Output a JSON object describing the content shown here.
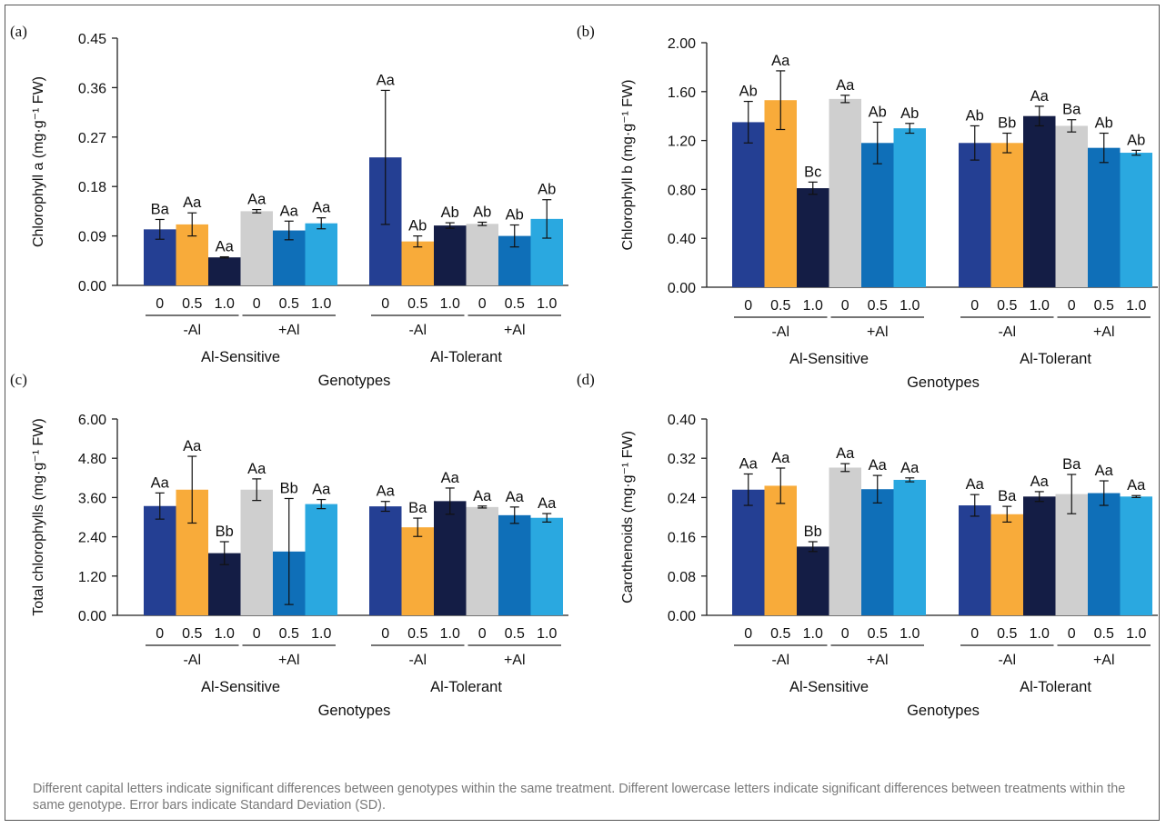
{
  "footnote": "Different capital letters indicate significant differences between genotypes within the same treatment. Different lowercase letters indicate significant differences between treatments within the same genotype. Error bars indicate Standard Deviation (SD).",
  "colors": {
    "-Al|0": "#243f93",
    "-Al|0.5": "#f8ab3a",
    "-Al|1.0": "#141d45",
    "+Al|0": "#cfcfcf",
    "+Al|0.5": "#0f6fb8",
    "+Al|1.0": "#2aa8e0"
  },
  "chart_data": [
    {
      "panel": "(a)",
      "type": "bar",
      "ylabel": "Chlorophyll a (mg·g⁻¹ FW)",
      "xlabel": "Genotypes",
      "ylim": [
        0,
        0.45
      ],
      "yticks": [
        "0.00",
        "0.09",
        "0.18",
        "0.27",
        "0.36",
        "0.45"
      ],
      "genotypes": [
        "Al-Sensitive",
        "Al-Tolerant"
      ],
      "treatments": [
        "-Al",
        "+Al"
      ],
      "levels": [
        "0",
        "0.5",
        "1.0"
      ],
      "series": [
        {
          "genotype": "Al-Sensitive",
          "treatment": "-Al",
          "level": "0",
          "value": 0.102,
          "sd": 0.018,
          "label": "Ba"
        },
        {
          "genotype": "Al-Sensitive",
          "treatment": "-Al",
          "level": "0.5",
          "value": 0.111,
          "sd": 0.021,
          "label": "Aa"
        },
        {
          "genotype": "Al-Sensitive",
          "treatment": "-Al",
          "level": "1.0",
          "value": 0.051,
          "sd": 0.001,
          "label": "Aa"
        },
        {
          "genotype": "Al-Sensitive",
          "treatment": "+Al",
          "level": "0",
          "value": 0.135,
          "sd": 0.003,
          "label": "Aa"
        },
        {
          "genotype": "Al-Sensitive",
          "treatment": "+Al",
          "level": "0.5",
          "value": 0.1,
          "sd": 0.017,
          "label": "Aa"
        },
        {
          "genotype": "Al-Sensitive",
          "treatment": "+Al",
          "level": "1.0",
          "value": 0.113,
          "sd": 0.01,
          "label": "Aa"
        },
        {
          "genotype": "Al-Tolerant",
          "treatment": "-Al",
          "level": "0",
          "value": 0.233,
          "sd": 0.122,
          "label": "Aa"
        },
        {
          "genotype": "Al-Tolerant",
          "treatment": "-Al",
          "level": "0.5",
          "value": 0.08,
          "sd": 0.01,
          "label": "Ab"
        },
        {
          "genotype": "Al-Tolerant",
          "treatment": "-Al",
          "level": "1.0",
          "value": 0.109,
          "sd": 0.005,
          "label": "Ab"
        },
        {
          "genotype": "Al-Tolerant",
          "treatment": "+Al",
          "level": "0",
          "value": 0.112,
          "sd": 0.003,
          "label": "Ab"
        },
        {
          "genotype": "Al-Tolerant",
          "treatment": "+Al",
          "level": "0.5",
          "value": 0.09,
          "sd": 0.02,
          "label": "Ab"
        },
        {
          "genotype": "Al-Tolerant",
          "treatment": "+Al",
          "level": "1.0",
          "value": 0.121,
          "sd": 0.035,
          "label": "Ab"
        }
      ]
    },
    {
      "panel": "(b)",
      "type": "bar",
      "ylabel": "Chlorophyll b (mg·g⁻¹ FW)",
      "xlabel": "Genotypes",
      "ylim": [
        0,
        2.0
      ],
      "yticks": [
        "0.00",
        "0.40",
        "0.80",
        "1.20",
        "1.60",
        "2.00"
      ],
      "genotypes": [
        "Al-Sensitive",
        "Al-Tolerant"
      ],
      "treatments": [
        "-Al",
        "+Al"
      ],
      "levels": [
        "0",
        "0.5",
        "1.0"
      ],
      "series": [
        {
          "genotype": "Al-Sensitive",
          "treatment": "-Al",
          "level": "0",
          "value": 1.35,
          "sd": 0.17,
          "label": "Ab"
        },
        {
          "genotype": "Al-Sensitive",
          "treatment": "-Al",
          "level": "0.5",
          "value": 1.53,
          "sd": 0.24,
          "label": "Aa"
        },
        {
          "genotype": "Al-Sensitive",
          "treatment": "-Al",
          "level": "1.0",
          "value": 0.81,
          "sd": 0.05,
          "label": "Bc"
        },
        {
          "genotype": "Al-Sensitive",
          "treatment": "+Al",
          "level": "0",
          "value": 1.54,
          "sd": 0.03,
          "label": "Aa"
        },
        {
          "genotype": "Al-Sensitive",
          "treatment": "+Al",
          "level": "0.5",
          "value": 1.18,
          "sd": 0.17,
          "label": "Ab"
        },
        {
          "genotype": "Al-Sensitive",
          "treatment": "+Al",
          "level": "1.0",
          "value": 1.3,
          "sd": 0.04,
          "label": "Ab"
        },
        {
          "genotype": "Al-Tolerant",
          "treatment": "-Al",
          "level": "0",
          "value": 1.18,
          "sd": 0.14,
          "label": "Ab"
        },
        {
          "genotype": "Al-Tolerant",
          "treatment": "-Al",
          "level": "0.5",
          "value": 1.18,
          "sd": 0.08,
          "label": "Bb"
        },
        {
          "genotype": "Al-Tolerant",
          "treatment": "-Al",
          "level": "1.0",
          "value": 1.4,
          "sd": 0.08,
          "label": "Aa"
        },
        {
          "genotype": "Al-Tolerant",
          "treatment": "+Al",
          "level": "0",
          "value": 1.32,
          "sd": 0.05,
          "label": "Ba"
        },
        {
          "genotype": "Al-Tolerant",
          "treatment": "+Al",
          "level": "0.5",
          "value": 1.14,
          "sd": 0.12,
          "label": "Ab"
        },
        {
          "genotype": "Al-Tolerant",
          "treatment": "+Al",
          "level": "1.0",
          "value": 1.1,
          "sd": 0.02,
          "label": "Ab"
        }
      ]
    },
    {
      "panel": "(c)",
      "type": "bar",
      "ylabel": "Total chlorophylls (mg·g⁻¹ FW)",
      "xlabel": "Genotypes",
      "ylim": [
        0,
        6.0
      ],
      "yticks": [
        "0.00",
        "1.20",
        "2.40",
        "3.60",
        "4.80",
        "6.00"
      ],
      "genotypes": [
        "Al-Sensitive",
        "Al-Tolerant"
      ],
      "treatments": [
        "-Al",
        "+Al"
      ],
      "levels": [
        "0",
        "0.5",
        "1.0"
      ],
      "series": [
        {
          "genotype": "Al-Sensitive",
          "treatment": "-Al",
          "level": "0",
          "value": 3.34,
          "sd": 0.4,
          "label": "Aa"
        },
        {
          "genotype": "Al-Sensitive",
          "treatment": "-Al",
          "level": "0.5",
          "value": 3.84,
          "sd": 1.02,
          "label": "Aa"
        },
        {
          "genotype": "Al-Sensitive",
          "treatment": "-Al",
          "level": "1.0",
          "value": 1.9,
          "sd": 0.35,
          "label": "Bb"
        },
        {
          "genotype": "Al-Sensitive",
          "treatment": "+Al",
          "level": "0",
          "value": 3.84,
          "sd": 0.33,
          "label": "Aa"
        },
        {
          "genotype": "Al-Sensitive",
          "treatment": "+Al",
          "level": "0.5",
          "value": 1.95,
          "sd": 1.62,
          "label": "Bb"
        },
        {
          "genotype": "Al-Sensitive",
          "treatment": "+Al",
          "level": "1.0",
          "value": 3.4,
          "sd": 0.14,
          "label": "Aa"
        },
        {
          "genotype": "Al-Tolerant",
          "treatment": "-Al",
          "level": "0",
          "value": 3.33,
          "sd": 0.15,
          "label": "Aa"
        },
        {
          "genotype": "Al-Tolerant",
          "treatment": "-Al",
          "level": "0.5",
          "value": 2.69,
          "sd": 0.28,
          "label": "Ba"
        },
        {
          "genotype": "Al-Tolerant",
          "treatment": "-Al",
          "level": "1.0",
          "value": 3.49,
          "sd": 0.4,
          "label": "Aa"
        },
        {
          "genotype": "Al-Tolerant",
          "treatment": "+Al",
          "level": "0",
          "value": 3.31,
          "sd": 0.03,
          "label": "Aa"
        },
        {
          "genotype": "Al-Tolerant",
          "treatment": "+Al",
          "level": "0.5",
          "value": 3.06,
          "sd": 0.25,
          "label": "Aa"
        },
        {
          "genotype": "Al-Tolerant",
          "treatment": "+Al",
          "level": "1.0",
          "value": 2.98,
          "sd": 0.13,
          "label": "Aa"
        }
      ]
    },
    {
      "panel": "(d)",
      "type": "bar",
      "ylabel": "Carothenoids (mg·g⁻¹ FW)",
      "xlabel": "Genotypes",
      "ylim": [
        0,
        0.4
      ],
      "yticks": [
        "0.00",
        "0.08",
        "0.16",
        "0.24",
        "0.32",
        "0.40"
      ],
      "genotypes": [
        "Al-Sensitive",
        "Al-Tolerant"
      ],
      "treatments": [
        "-Al",
        "+Al"
      ],
      "levels": [
        "0",
        "0.5",
        "1.0"
      ],
      "series": [
        {
          "genotype": "Al-Sensitive",
          "treatment": "-Al",
          "level": "0",
          "value": 0.256,
          "sd": 0.032,
          "label": "Aa"
        },
        {
          "genotype": "Al-Sensitive",
          "treatment": "-Al",
          "level": "0.5",
          "value": 0.264,
          "sd": 0.036,
          "label": "Aa"
        },
        {
          "genotype": "Al-Sensitive",
          "treatment": "-Al",
          "level": "1.0",
          "value": 0.14,
          "sd": 0.01,
          "label": "Bb"
        },
        {
          "genotype": "Al-Sensitive",
          "treatment": "+Al",
          "level": "0",
          "value": 0.301,
          "sd": 0.008,
          "label": "Aa"
        },
        {
          "genotype": "Al-Sensitive",
          "treatment": "+Al",
          "level": "0.5",
          "value": 0.257,
          "sd": 0.028,
          "label": "Aa"
        },
        {
          "genotype": "Al-Sensitive",
          "treatment": "+Al",
          "level": "1.0",
          "value": 0.276,
          "sd": 0.004,
          "label": "Aa"
        },
        {
          "genotype": "Al-Tolerant",
          "treatment": "-Al",
          "level": "0",
          "value": 0.224,
          "sd": 0.022,
          "label": "Aa"
        },
        {
          "genotype": "Al-Tolerant",
          "treatment": "-Al",
          "level": "0.5",
          "value": 0.206,
          "sd": 0.016,
          "label": "Ba"
        },
        {
          "genotype": "Al-Tolerant",
          "treatment": "-Al",
          "level": "1.0",
          "value": 0.242,
          "sd": 0.01,
          "label": "Aa"
        },
        {
          "genotype": "Al-Tolerant",
          "treatment": "+Al",
          "level": "0",
          "value": 0.247,
          "sd": 0.04,
          "label": "Ba"
        },
        {
          "genotype": "Al-Tolerant",
          "treatment": "+Al",
          "level": "0.5",
          "value": 0.249,
          "sd": 0.025,
          "label": "Aa"
        },
        {
          "genotype": "Al-Tolerant",
          "treatment": "+Al",
          "level": "1.0",
          "value": 0.242,
          "sd": 0.002,
          "label": "Aa"
        }
      ]
    }
  ]
}
